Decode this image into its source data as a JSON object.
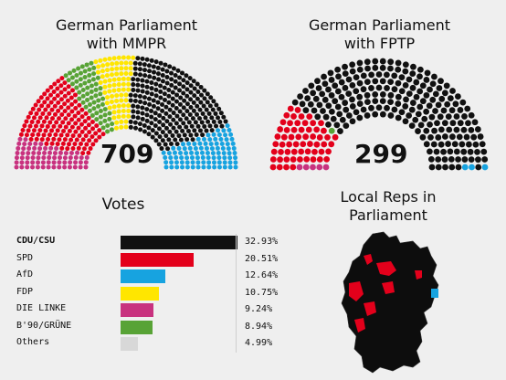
{
  "titles": {
    "mmpr": "German Parliament\nwith MMPR",
    "fptp": "German Parliament\nwith FPTP",
    "votes": "Votes",
    "local": "Local Reps in\nParliament"
  },
  "colors": {
    "CDU/CSU": "#111111",
    "SPD": "#e3001b",
    "AfD": "#17a3e0",
    "FDP": "#ffe600",
    "DIE LINKE": "#c8327f",
    "B'90/GRÜNE": "#58a336",
    "Others": "#d8d8d8"
  },
  "chart_data": [
    {
      "type": "parliament",
      "title": "German Parliament with MMPR",
      "total_seats": "709",
      "seats": [
        {
          "party": "DIE LINKE",
          "value": 69
        },
        {
          "party": "SPD",
          "value": 153
        },
        {
          "party": "B'90/GRÜNE",
          "value": 67
        },
        {
          "party": "FDP",
          "value": 80
        },
        {
          "party": "CDU/CSU",
          "value": 246
        },
        {
          "party": "AfD",
          "value": 94
        }
      ]
    },
    {
      "type": "parliament",
      "title": "German Parliament with FPTP",
      "total_seats": "299",
      "seats": [
        {
          "party": "DIE LINKE",
          "value": 5
        },
        {
          "party": "SPD",
          "value": 59
        },
        {
          "party": "B'90/GRÜNE",
          "value": 1
        },
        {
          "party": "CDU/CSU",
          "value": 231
        },
        {
          "party": "AfD",
          "value": 3
        }
      ]
    },
    {
      "type": "bar",
      "title": "Votes",
      "categories": [
        "CDU/CSU",
        "SPD",
        "AfD",
        "FDP",
        "DIE LINKE",
        "B'90/GRÜNE",
        "Others"
      ],
      "values": [
        32.93,
        20.51,
        12.64,
        10.75,
        9.24,
        8.94,
        4.99
      ],
      "labels": [
        "32.93%",
        "20.51%",
        "12.64%",
        "10.75%",
        "9.24%",
        "8.94%",
        "4.99%"
      ],
      "xlim": [
        0,
        33
      ]
    }
  ],
  "map": {
    "title": "Local Reps in Parliament"
  }
}
